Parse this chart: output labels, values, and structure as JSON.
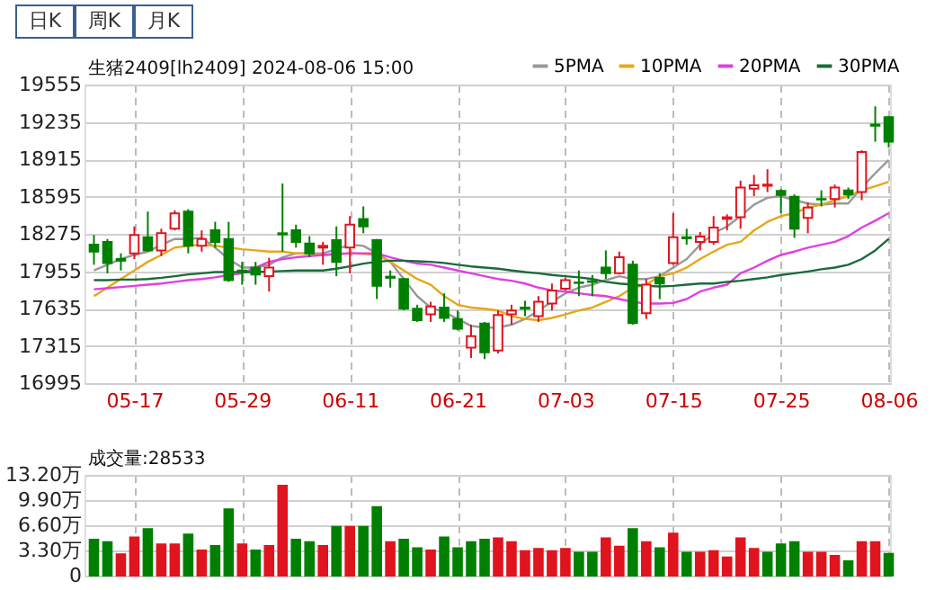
{
  "chart_data": [
    {
      "type": "candlestick",
      "title": "生猪2409[lh2409] 2024-08-06 15:00",
      "annotations": [
        "日K",
        "周K",
        "月K"
      ],
      "categories": [
        null,
        null,
        null,
        "05-17",
        null,
        null,
        null,
        null,
        null,
        null,
        null,
        "05-29",
        null,
        null,
        null,
        null,
        null,
        null,
        null,
        "06-11",
        null,
        null,
        null,
        null,
        null,
        null,
        null,
        "06-21",
        null,
        null,
        null,
        null,
        null,
        null,
        null,
        "07-03",
        null,
        null,
        null,
        null,
        null,
        null,
        null,
        "07-15",
        null,
        null,
        null,
        null,
        null,
        null,
        null,
        "07-25",
        null,
        null,
        null,
        null,
        null,
        null,
        null,
        "08-06"
      ],
      "ohlc": [
        [
          18182,
          18265,
          18010,
          18123
        ],
        [
          18206,
          18231,
          17937,
          18025
        ],
        [
          18060,
          18108,
          17961,
          18045
        ],
        [
          18108,
          18339,
          18059,
          18265
        ],
        [
          18246,
          18466,
          18123,
          18133
        ],
        [
          18133,
          18319,
          18084,
          18280
        ],
        [
          18319,
          18476,
          18305,
          18451
        ],
        [
          18466,
          18486,
          18108,
          18172
        ],
        [
          18172,
          18305,
          18123,
          18231
        ],
        [
          18305,
          18378,
          18157,
          18206
        ],
        [
          18231,
          18378,
          17863,
          17878
        ],
        [
          17961,
          18035,
          17839,
          17947
        ],
        [
          17986,
          18035,
          17839,
          17927
        ],
        [
          17912,
          18069,
          17780,
          17986
        ],
        [
          18280,
          18707,
          18123,
          18270
        ],
        [
          18305,
          18354,
          18157,
          18206
        ],
        [
          18192,
          18255,
          18074,
          18108
        ],
        [
          18157,
          18206,
          18010,
          18172
        ],
        [
          18221,
          18339,
          17912,
          18035
        ],
        [
          18157,
          18427,
          17937,
          18354
        ],
        [
          18403,
          18510,
          18280,
          18339
        ],
        [
          18221,
          18231,
          17716,
          17829
        ],
        [
          17908,
          17961,
          17814,
          17898
        ],
        [
          17888,
          17898,
          17620,
          17633
        ],
        [
          17633,
          17667,
          17520,
          17535
        ],
        [
          17584,
          17692,
          17520,
          17653
        ],
        [
          17643,
          17765,
          17520,
          17554
        ],
        [
          17545,
          17618,
          17447,
          17461
        ],
        [
          17300,
          17496,
          17211,
          17398
        ],
        [
          17505,
          17520,
          17201,
          17260
        ],
        [
          17275,
          17618,
          17250,
          17579
        ],
        [
          17584,
          17667,
          17496,
          17618
        ],
        [
          17643,
          17701,
          17569,
          17633
        ],
        [
          17569,
          17741,
          17520,
          17692
        ],
        [
          17677,
          17849,
          17618,
          17790
        ],
        [
          17805,
          17898,
          17790,
          17878
        ],
        [
          17858,
          17961,
          17741,
          17854
        ],
        [
          17869,
          17922,
          17741,
          17863
        ],
        [
          17986,
          18133,
          17888,
          17937
        ],
        [
          17937,
          18123,
          17927,
          18074
        ],
        [
          18010,
          18045,
          17496,
          17510
        ],
        [
          17594,
          17888,
          17545,
          17839
        ],
        [
          17898,
          17937,
          17716,
          17849
        ],
        [
          18025,
          18452,
          18010,
          18246
        ],
        [
          18246,
          18319,
          18182,
          18236
        ],
        [
          18206,
          18290,
          18133,
          18251
        ],
        [
          18206,
          18427,
          18182,
          18329
        ],
        [
          18403,
          18442,
          18305,
          18417
        ],
        [
          18417,
          18731,
          18319,
          18672
        ],
        [
          18663,
          18780,
          18599,
          18692
        ],
        [
          18687,
          18829,
          18633,
          18697
        ],
        [
          18643,
          18658,
          18452,
          18609
        ],
        [
          18594,
          18613,
          18241,
          18319
        ],
        [
          18412,
          18545,
          18280,
          18501
        ],
        [
          18574,
          18648,
          18510,
          18570
        ],
        [
          18574,
          18697,
          18501,
          18672
        ],
        [
          18648,
          18672,
          18574,
          18613
        ],
        [
          18633,
          18991,
          18564,
          18976
        ],
        [
          19212,
          19368,
          19065,
          19202
        ],
        [
          19275,
          19285,
          19016,
          19065
        ]
      ],
      "colors": [
        "#008000",
        "#008000",
        "#008000",
        "#e0141e",
        "#008000",
        "#e0141e",
        "#e0141e",
        "#008000",
        "#e0141e",
        "#008000",
        "#008000",
        "#008000",
        "#008000",
        "#e0141e",
        "#008000",
        "#008000",
        "#008000",
        "#e0141e",
        "#008000",
        "#e0141e",
        "#008000",
        "#008000",
        "#008000",
        "#008000",
        "#008000",
        "#e0141e",
        "#008000",
        "#008000",
        "#e0141e",
        "#008000",
        "#e0141e",
        "#e0141e",
        "#008000",
        "#e0141e",
        "#e0141e",
        "#e0141e",
        "#008000",
        "#008000",
        "#008000",
        "#e0141e",
        "#008000",
        "#e0141e",
        "#008000",
        "#e0141e",
        "#008000",
        "#e0141e",
        "#e0141e",
        "#e0141e",
        "#e0141e",
        "#e0141e",
        "#e0141e",
        "#008000",
        "#008000",
        "#e0141e",
        "#008000",
        "#e0141e",
        "#008000",
        "#e0141e",
        "#008000",
        "#008000"
      ],
      "series": [
        {
          "name": "5PMA",
          "type": "line",
          "color": "#999999",
          "values": [
            17961,
            18010,
            18059,
            18094,
            18123,
            18182,
            18231,
            18231,
            18241,
            18157,
            18059,
            17986,
            17986,
            18010,
            18074,
            18108,
            18108,
            18108,
            18143,
            18182,
            18172,
            18108,
            18035,
            17888,
            17741,
            17643,
            17603,
            17545,
            17486,
            17471,
            17471,
            17496,
            17545,
            17618,
            17692,
            17765,
            17814,
            17839,
            17878,
            17912,
            17888,
            17888,
            17912,
            17986,
            18059,
            18182,
            18280,
            18339,
            18427,
            18525,
            18584,
            18599,
            18564,
            18535,
            18525,
            18535,
            18535,
            18672,
            18795,
            18908
          ]
        },
        {
          "name": "10PMA",
          "type": "line",
          "color": "#e6a817",
          "values": [
            17741,
            17814,
            17888,
            17961,
            18035,
            18094,
            18157,
            18172,
            18182,
            18172,
            18157,
            18143,
            18133,
            18123,
            18123,
            18108,
            18103,
            18094,
            18099,
            18108,
            18103,
            18094,
            18035,
            17961,
            17888,
            17839,
            17741,
            17667,
            17643,
            17633,
            17618,
            17569,
            17545,
            17535,
            17554,
            17584,
            17618,
            17643,
            17692,
            17741,
            17814,
            17839,
            17912,
            17937,
            17986,
            18059,
            18123,
            18182,
            18206,
            18304,
            18378,
            18427,
            18452,
            18501,
            18525,
            18564,
            18599,
            18648,
            18682,
            18721
          ]
        },
        {
          "name": "20PMA",
          "type": "line",
          "color": "#e040e0",
          "values": [
            17800,
            17809,
            17819,
            17829,
            17839,
            17849,
            17863,
            17878,
            17888,
            17902,
            17922,
            17937,
            17986,
            18035,
            18059,
            18074,
            18084,
            18094,
            18103,
            18108,
            18108,
            18108,
            18074,
            18045,
            18020,
            18010,
            17986,
            17961,
            17937,
            17912,
            17888,
            17873,
            17849,
            17814,
            17790,
            17780,
            17765,
            17751,
            17741,
            17716,
            17692,
            17677,
            17677,
            17682,
            17716,
            17780,
            17814,
            17839,
            17937,
            17986,
            18045,
            18094,
            18123,
            18157,
            18182,
            18206,
            18255,
            18329,
            18388,
            18452
          ]
        },
        {
          "name": "30PMA",
          "type": "line",
          "color": "#1a6b3a",
          "values": [
            17878,
            17878,
            17883,
            17883,
            17888,
            17898,
            17912,
            17927,
            17937,
            17947,
            17947,
            17947,
            17947,
            17952,
            17956,
            17961,
            17961,
            17961,
            17976,
            17996,
            18020,
            18035,
            18045,
            18045,
            18040,
            18035,
            18025,
            18010,
            17996,
            17986,
            17976,
            17961,
            17947,
            17937,
            17922,
            17912,
            17902,
            17888,
            17863,
            17849,
            17839,
            17829,
            17824,
            17829,
            17839,
            17849,
            17849,
            17863,
            17873,
            17888,
            17902,
            17922,
            17937,
            17952,
            17971,
            17986,
            18010,
            18059,
            18133,
            18231
          ]
        }
      ],
      "ylim": [
        16995,
        19555
      ],
      "yticks": [
        16995,
        17315,
        17635,
        17955,
        18275,
        18595,
        18915,
        19235,
        19555
      ],
      "grid": true,
      "legend": "top right"
    },
    {
      "type": "bar",
      "title": "成交量:28533",
      "tick_labels": "y",
      "values": [
        4.7,
        4.4,
        2.8,
        5.0,
        6.1,
        4.1,
        4.1,
        5.4,
        3.3,
        3.9,
        8.7,
        4.1,
        3.3,
        3.9,
        11.8,
        4.7,
        4.4,
        3.9,
        6.4,
        6.4,
        6.4,
        9.0,
        4.4,
        4.7,
        3.6,
        3.3,
        5.0,
        3.6,
        4.4,
        4.7,
        4.9,
        4.4,
        3.2,
        3.5,
        3.2,
        3.5,
        3.0,
        3.0,
        4.9,
        3.8,
        6.1,
        4.4,
        3.6,
        5.5,
        3.0,
        3.0,
        3.2,
        2.4,
        4.9,
        3.5,
        3.0,
        4.1,
        4.4,
        3.0,
        3.0,
        2.6,
        1.9,
        4.4,
        4.4,
        2.85
      ],
      "colors": [
        "#008000",
        "#008000",
        "#e0141e",
        "#e0141e",
        "#008000",
        "#e0141e",
        "#e0141e",
        "#008000",
        "#e0141e",
        "#008000",
        "#008000",
        "#e0141e",
        "#008000",
        "#e0141e",
        "#e0141e",
        "#008000",
        "#008000",
        "#e0141e",
        "#008000",
        "#e0141e",
        "#008000",
        "#008000",
        "#e0141e",
        "#008000",
        "#008000",
        "#e0141e",
        "#008000",
        "#008000",
        "#008000",
        "#008000",
        "#e0141e",
        "#e0141e",
        "#e0141e",
        "#e0141e",
        "#e0141e",
        "#e0141e",
        "#008000",
        "#008000",
        "#e0141e",
        "#e0141e",
        "#008000",
        "#e0141e",
        "#008000",
        "#e0141e",
        "#008000",
        "#e0141e",
        "#e0141e",
        "#e0141e",
        "#e0141e",
        "#e0141e",
        "#008000",
        "#008000",
        "#008000",
        "#e0141e",
        "#e0141e",
        "#e0141e",
        "#008000",
        "#e0141e",
        "#e0141e",
        "#008000"
      ],
      "ylim": [
        0,
        13.2
      ],
      "yticks": [
        0,
        {
          "value": 3.3,
          "label": "3.30万"
        },
        {
          "value": 6.6,
          "label": "6.60万"
        },
        {
          "value": 9.9,
          "label": "9.90万"
        },
        {
          "value": 13.2,
          "label": "13.20万"
        }
      ],
      "grid": true
    }
  ]
}
